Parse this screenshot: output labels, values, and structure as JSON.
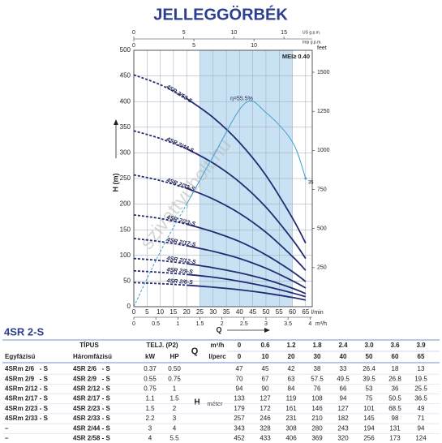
{
  "title": "JELLEGGÖRBÉK",
  "watermark": "szivattyubolt.hu",
  "chart_data": {
    "type": "line",
    "y_label": "H (m)",
    "x_label": "Q",
    "x_unit": "l/min",
    "x": [
      0,
      10,
      20,
      30,
      40,
      50,
      60,
      65
    ],
    "xlim": [
      0,
      67.5
    ],
    "xticks": [
      0,
      5,
      10,
      15,
      20,
      25,
      30,
      35,
      40,
      45,
      50,
      55,
      60,
      65
    ],
    "ylim": [
      0,
      500
    ],
    "yticks": [
      0,
      50,
      100,
      150,
      200,
      250,
      300,
      350,
      400,
      450,
      500
    ],
    "y2_label": "feet",
    "y2lim": [
      0,
      1640.4
    ],
    "y2ticks": [
      250,
      500,
      750,
      1000,
      1250,
      1500
    ],
    "m3h_unit": "m³/h",
    "m3h_lim": [
      0,
      4.05
    ],
    "m3h_ticks": [
      0,
      0.5,
      1,
      1.5,
      2,
      2.5,
      3,
      3.5,
      4
    ],
    "us_gpm_unit": "US g.p.m.",
    "us_gpm_lim": [
      0,
      17.83
    ],
    "us_gpm_ticks": [
      0,
      5,
      10,
      15
    ],
    "imp_gpm_unit": "Imp g.p.m.",
    "imp_gpm_lim": [
      0,
      14.85
    ],
    "imp_gpm_ticks": [
      0,
      5,
      10
    ],
    "grid": true,
    "shaded_range": [
      25,
      60
    ],
    "shade_color": "#c8e2f3",
    "mei": "MEI≥ 0.40",
    "series": [
      {
        "name": "4SR 2/6-S",
        "color": "#232c72",
        "values": [
          47,
          45,
          42,
          38,
          33,
          26.4,
          18,
          13
        ]
      },
      {
        "name": "4SR 2/9-S",
        "color": "#232c72",
        "values": [
          70,
          67,
          63,
          57.5,
          49.5,
          39.5,
          26.8,
          19.5
        ]
      },
      {
        "name": "4SR 2/12-S",
        "color": "#232c72",
        "values": [
          94,
          90,
          84,
          76,
          66,
          53,
          36,
          25.5
        ]
      },
      {
        "name": "4SR 2/17-S",
        "color": "#232c72",
        "values": [
          133,
          127,
          119,
          108,
          94,
          75,
          50.5,
          36.5
        ]
      },
      {
        "name": "4SR 2/23-S",
        "color": "#232c72",
        "values": [
          179,
          172,
          161,
          146,
          127,
          101,
          68.5,
          49
        ]
      },
      {
        "name": "4SR 2/33-S",
        "color": "#232c72",
        "values": [
          257,
          246,
          231,
          210,
          182,
          145,
          98,
          71
        ]
      },
      {
        "name": "4SR 2/44-S",
        "color": "#232c72",
        "values": [
          343,
          328,
          308,
          280,
          243,
          194,
          131,
          94
        ]
      },
      {
        "name": "4SR 2/58-S",
        "color": "#232c72",
        "values": [
          452,
          433,
          406,
          369,
          320,
          256,
          173,
          124
        ]
      }
    ],
    "efficiency": {
      "label": "η=55.5%",
      "color": "#3d9fd3",
      "x": [
        0,
        10,
        20,
        30,
        42,
        50,
        60,
        65
      ],
      "values": [
        0,
        15,
        28,
        41,
        55.5,
        53,
        45,
        35
      ],
      "ylim": [
        0,
        70
      ]
    }
  },
  "table": {
    "heading": "4SR 2-S",
    "type_header": "TÍPUS",
    "power_header": "TELJ. (P2)",
    "q_header": "Q",
    "single_phase": "Egyfázisú",
    "three_phase": "Háromfázisú",
    "kw": "kW",
    "hp": "HP",
    "q_m3h_unit": "m³/h",
    "q_lmin_unit": "l/perc",
    "q_m3h": [
      "0",
      "0.6",
      "1.2",
      "1.8",
      "2.4",
      "3.0",
      "3.6",
      "3.9"
    ],
    "h_header": "H",
    "h_unit": "méter",
    "rows": [
      [
        "4SRm 2/6   - S",
        "4SR 2/6   - S",
        "0.37",
        "0.50"
      ],
      [
        "4SRm 2/9   - S",
        "4SR 2/9   - S",
        "0.55",
        "0.75"
      ],
      [
        "4SRm 2/12 - S",
        "4SR 2/12 - S",
        "0.75",
        "1"
      ],
      [
        "4SRm 2/17 - S",
        "4SR 2/17 - S",
        "1.1",
        "1.5"
      ],
      [
        "4SRm 2/23 - S",
        "4SR 2/23 - S",
        "1.5",
        "2"
      ],
      [
        "4SRm 2/33 - S",
        "4SR 2/33 - S",
        "2.2",
        "3"
      ],
      [
        "–",
        "4SR 2/44 - S",
        "3",
        "4"
      ],
      [
        "–",
        "4SR 2/58 - S",
        "4",
        "5.5"
      ]
    ]
  }
}
